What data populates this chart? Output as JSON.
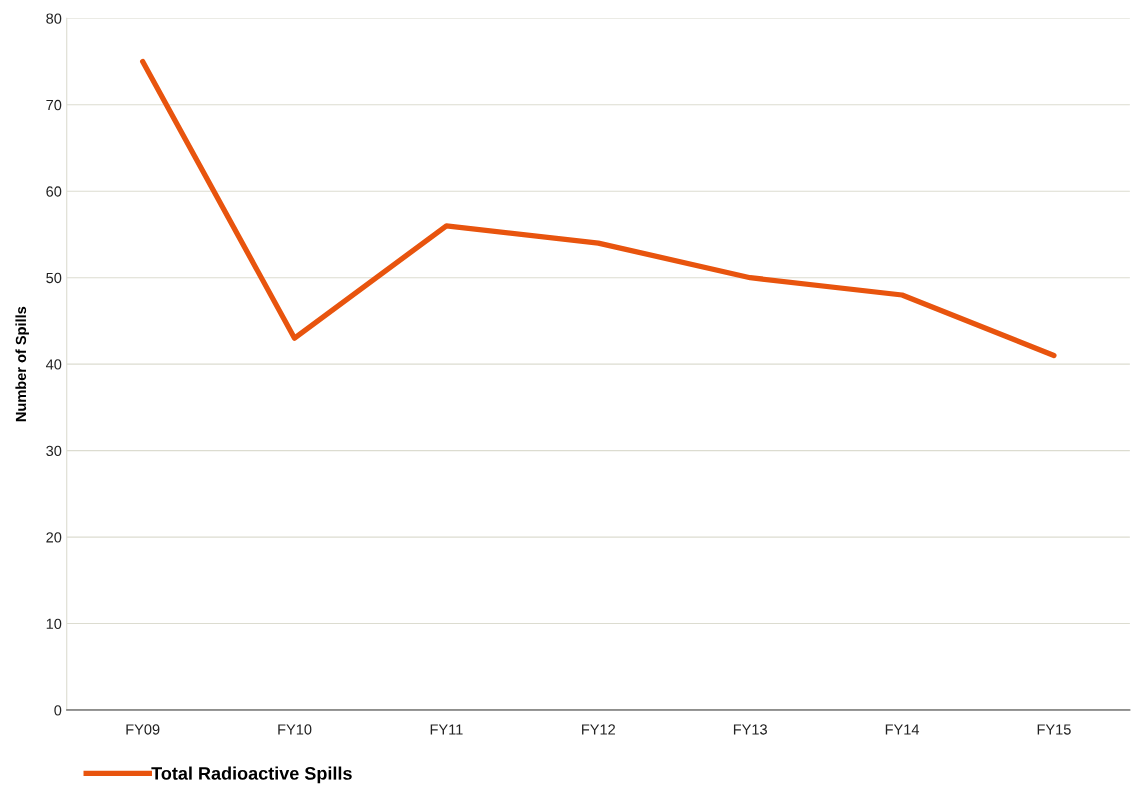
{
  "chart_data": {
    "type": "line",
    "ylabel": "Number of Spills",
    "categories": [
      "FY09",
      "FY10",
      "FY11",
      "FY12",
      "FY13",
      "FY14",
      "FY15"
    ],
    "series": [
      {
        "name": "Total Radioactive Spills",
        "color": "#e8540e",
        "values": [
          75,
          43,
          56,
          54,
          50,
          48,
          41
        ]
      }
    ],
    "ylim": [
      0,
      80
    ],
    "yticks": [
      0,
      10,
      20,
      30,
      40,
      50,
      60,
      70,
      80
    ],
    "grid": "y",
    "legend": "bottom left",
    "marker": "none",
    "line_style": "solid"
  }
}
